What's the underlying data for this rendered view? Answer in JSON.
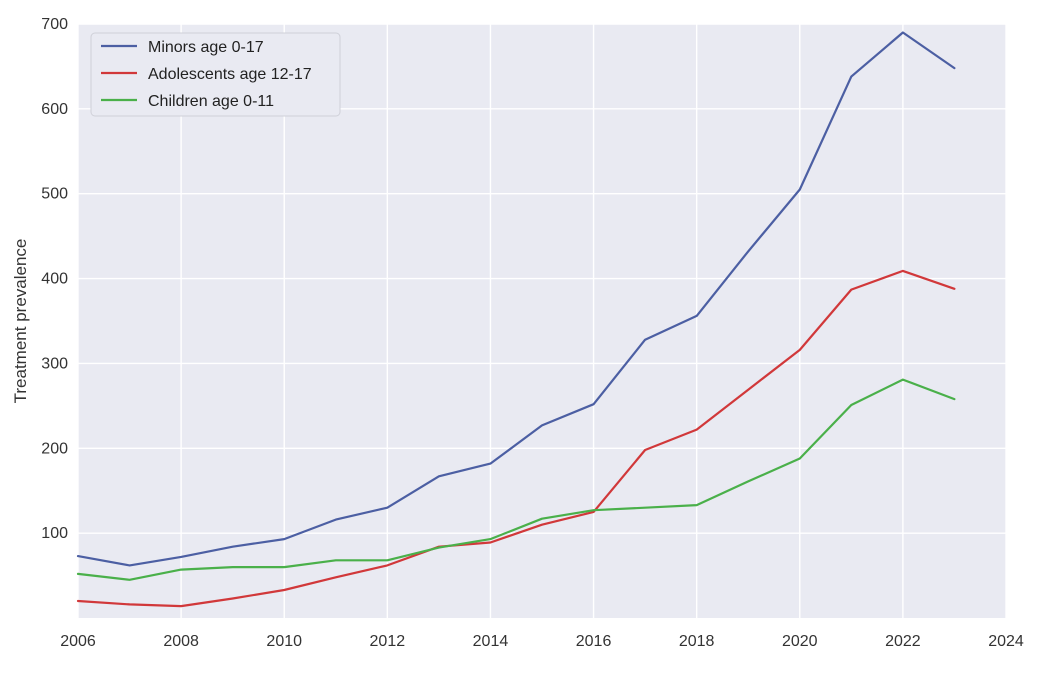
{
  "chart_data": {
    "type": "line",
    "title": "",
    "xlabel": "",
    "ylabel": "Treatment prevalence",
    "xlim": [
      2006,
      2024
    ],
    "ylim": [
      0,
      700
    ],
    "xticks": [
      "2006",
      "2008",
      "2010",
      "2012",
      "2014",
      "2016",
      "2018",
      "2020",
      "2022",
      "2024"
    ],
    "yticks": [
      "100",
      "200",
      "300",
      "400",
      "500",
      "600",
      "700"
    ],
    "grid": true,
    "legend_position": "top-left",
    "x": [
      2006,
      2007,
      2008,
      2009,
      2010,
      2011,
      2012,
      2013,
      2014,
      2015,
      2016,
      2017,
      2018,
      2019,
      2020,
      2021,
      2022,
      2023
    ],
    "series": [
      {
        "name": "Minors age 0-17",
        "color": "#4C5FA3",
        "values": [
          73,
          62,
          72,
          84,
          93,
          116,
          130,
          167,
          182,
          227,
          252,
          328,
          356,
          432,
          505,
          638,
          690,
          648
        ]
      },
      {
        "name": "Adolescents age 12-17",
        "color": "#D1383A",
        "values": [
          20,
          16,
          14,
          23,
          33,
          48,
          62,
          84,
          89,
          110,
          125,
          198,
          222,
          269,
          316,
          387,
          409,
          388
        ]
      },
      {
        "name": "Children age 0-11",
        "color": "#4AB04A",
        "values": [
          52,
          45,
          57,
          60,
          60,
          68,
          68,
          83,
          93,
          117,
          127,
          130,
          133,
          161,
          188,
          251,
          281,
          258
        ]
      }
    ]
  }
}
